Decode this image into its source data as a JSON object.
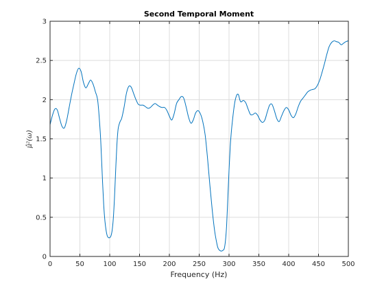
{
  "chart_data": {
    "type": "line",
    "title": "Second Temporal Moment",
    "xlabel": "Frequency (Hz)",
    "ylabel": "μ̂²(ω)",
    "xlim": [
      0,
      500
    ],
    "ylim": [
      0,
      3
    ],
    "grid": true,
    "x_ticks": [
      "0",
      "50",
      "100",
      "150",
      "200",
      "250",
      "300",
      "350",
      "400",
      "450",
      "500"
    ],
    "y_ticks": [
      "0",
      "0.5",
      "1",
      "1.5",
      "2",
      "2.5",
      "3"
    ],
    "colors": {
      "line": "#0072bd",
      "grid": "#dcdcdc",
      "axis": "#262626"
    },
    "series": [
      {
        "x": [
          0,
          4,
          8,
          12,
          16,
          20,
          24,
          28,
          32,
          36,
          40,
          44,
          48,
          52,
          56,
          60,
          64,
          68,
          72,
          76,
          80,
          84,
          86,
          88,
          90,
          92,
          94,
          96,
          98,
          100,
          102,
          104,
          106,
          108,
          110,
          112,
          114,
          116,
          118,
          120,
          124,
          128,
          132,
          136,
          140,
          144,
          148,
          152,
          156,
          160,
          164,
          168,
          172,
          176,
          180,
          184,
          188,
          192,
          196,
          200,
          204,
          208,
          212,
          216,
          220,
          224,
          228,
          232,
          236,
          240,
          244,
          248,
          252,
          256,
          260,
          264,
          268,
          272,
          276,
          280,
          282,
          284,
          286,
          288,
          290,
          292,
          294,
          296,
          298,
          300,
          302,
          304,
          306,
          308,
          310,
          312,
          314,
          316,
          318,
          320,
          324,
          328,
          332,
          336,
          340,
          344,
          348,
          352,
          356,
          360,
          364,
          368,
          372,
          376,
          380,
          384,
          388,
          392,
          396,
          400,
          404,
          408,
          412,
          416,
          420,
          424,
          428,
          432,
          436,
          440,
          444,
          448,
          452,
          456,
          460,
          464,
          468,
          472,
          476,
          480,
          484,
          488,
          492,
          496,
          500
        ],
        "y": [
          1.68,
          1.8,
          1.88,
          1.87,
          1.76,
          1.66,
          1.64,
          1.74,
          1.9,
          2.06,
          2.2,
          2.33,
          2.4,
          2.36,
          2.22,
          2.15,
          2.2,
          2.25,
          2.2,
          2.1,
          1.98,
          1.6,
          1.3,
          0.95,
          0.65,
          0.45,
          0.33,
          0.26,
          0.24,
          0.24,
          0.26,
          0.33,
          0.48,
          0.75,
          1.1,
          1.42,
          1.62,
          1.69,
          1.73,
          1.76,
          1.9,
          2.08,
          2.17,
          2.16,
          2.08,
          2.0,
          1.94,
          1.93,
          1.93,
          1.91,
          1.89,
          1.9,
          1.93,
          1.95,
          1.93,
          1.91,
          1.9,
          1.9,
          1.86,
          1.79,
          1.74,
          1.82,
          1.95,
          2.0,
          2.04,
          2.02,
          1.91,
          1.78,
          1.7,
          1.74,
          1.83,
          1.86,
          1.82,
          1.72,
          1.55,
          1.25,
          0.9,
          0.58,
          0.32,
          0.15,
          0.1,
          0.08,
          0.07,
          0.07,
          0.08,
          0.1,
          0.2,
          0.4,
          0.75,
          1.1,
          1.4,
          1.6,
          1.75,
          1.88,
          1.98,
          2.04,
          2.07,
          2.06,
          2.0,
          1.97,
          1.99,
          1.96,
          1.88,
          1.81,
          1.81,
          1.83,
          1.8,
          1.74,
          1.71,
          1.74,
          1.84,
          1.93,
          1.94,
          1.86,
          1.76,
          1.72,
          1.79,
          1.86,
          1.9,
          1.87,
          1.8,
          1.77,
          1.82,
          1.91,
          1.98,
          2.02,
          2.06,
          2.1,
          2.12,
          2.13,
          2.14,
          2.18,
          2.25,
          2.35,
          2.46,
          2.58,
          2.68,
          2.73,
          2.75,
          2.74,
          2.73,
          2.7,
          2.72,
          2.74,
          2.75
        ]
      }
    ]
  }
}
